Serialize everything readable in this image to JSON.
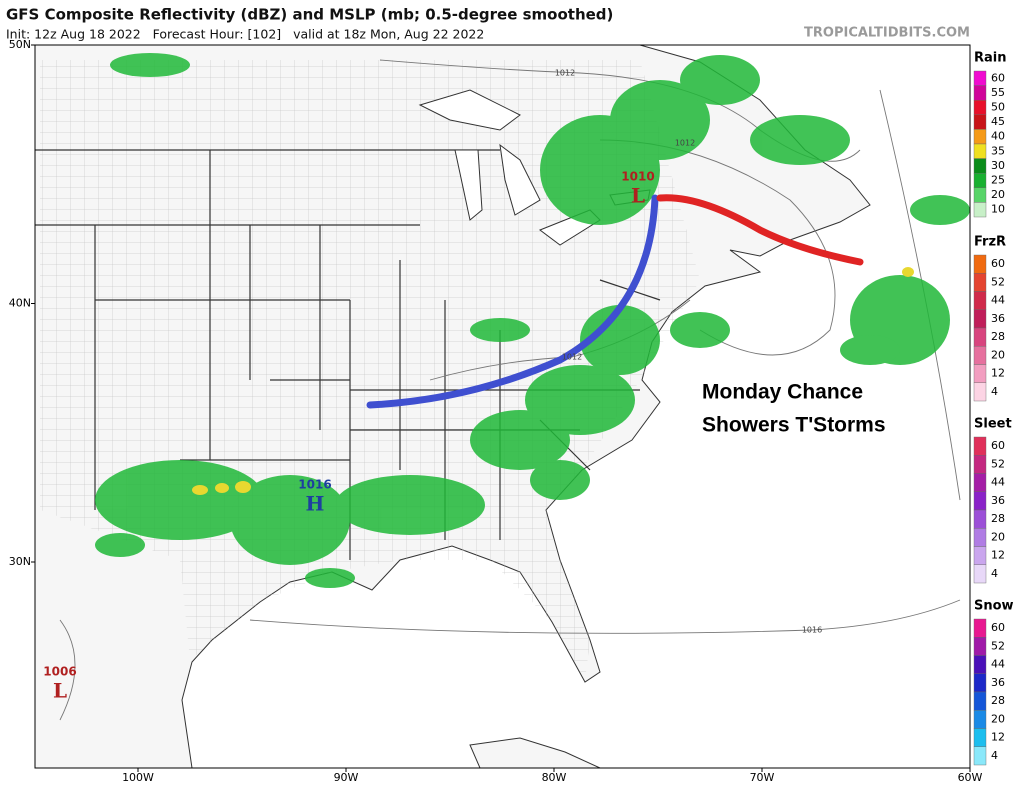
{
  "header": {
    "title": "GFS Composite Reflectivity (dBZ) and MSLP (mb; 0.5-degree smoothed)",
    "subtitle": "Init: 12z Aug 18 2022   Forecast Hour: [102]   valid at 18z Mon, Aug 22 2022",
    "site": "TROPICALTIDBITS.COM"
  },
  "map": {
    "latitudes": [
      {
        "value": 50,
        "label": "50N"
      },
      {
        "value": 40,
        "label": "40N"
      },
      {
        "value": 30,
        "label": "30N"
      }
    ],
    "longitudes": [
      {
        "value": 100,
        "label": "100W"
      },
      {
        "value": 90,
        "label": "90W"
      },
      {
        "value": 80,
        "label": "80W"
      },
      {
        "value": 70,
        "label": "70W"
      },
      {
        "value": 60,
        "label": "60W"
      }
    ],
    "pressure_centers": [
      {
        "value": 1010,
        "letter": "L"
      },
      {
        "value": 1016,
        "letter": "H"
      },
      {
        "value": 1006,
        "letter": "L"
      }
    ],
    "isobar_labels": [
      1012,
      1012,
      1012,
      1016
    ],
    "annotation": [
      "Monday Chance",
      "Showers T'Storms"
    ]
  },
  "legends": [
    {
      "title": "Rain",
      "levels": [
        60,
        55,
        50,
        45,
        40,
        35,
        30,
        25,
        20,
        10
      ],
      "colors": [
        "#f00bd0",
        "#d0049a",
        "#e8102a",
        "#c81418",
        "#f59a18",
        "#f0e020",
        "#0a8c1a",
        "#18b030",
        "#58d468",
        "#c8f0c8"
      ]
    },
    {
      "title": "FrzR",
      "levels": [
        60,
        52,
        44,
        36,
        28,
        20,
        12,
        4
      ],
      "colors": [
        "#f06a10",
        "#e44430",
        "#d02a4a",
        "#c01e5a",
        "#d8447e",
        "#e6709e",
        "#f29ec0",
        "#fcd4e4"
      ]
    },
    {
      "title": "Sleet",
      "levels": [
        60,
        52,
        44,
        36,
        28,
        20,
        12,
        4
      ],
      "colors": [
        "#e0305a",
        "#c42880",
        "#a41ea6",
        "#8a22c8",
        "#9c50d8",
        "#b07ce4",
        "#caa6ee",
        "#e8d8f8"
      ]
    },
    {
      "title": "Snow",
      "levels": [
        60,
        52,
        44,
        36,
        28,
        20,
        12,
        4
      ],
      "colors": [
        "#e81890",
        "#a01aa8",
        "#4a10b8",
        "#1c28c8",
        "#1456d8",
        "#1a8ae6",
        "#1cbeee",
        "#8ae8fa"
      ]
    }
  ]
}
